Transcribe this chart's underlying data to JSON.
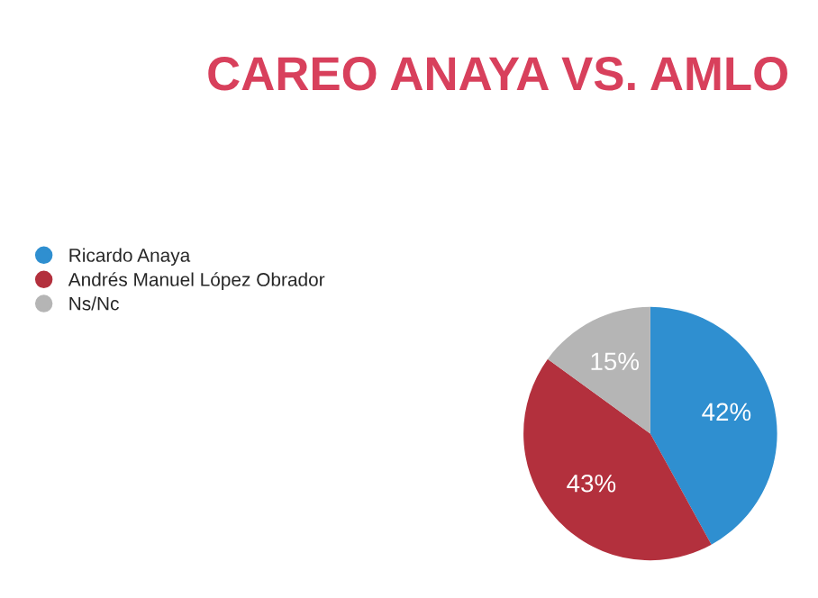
{
  "chart_data": {
    "type": "pie",
    "title": "CAREO ANAYA VS. AMLO",
    "categories": [
      "Ricardo Anaya",
      "Andrés Manuel López Obrador",
      "Ns/Nc"
    ],
    "values": [
      42,
      43,
      15
    ],
    "colors": [
      "#2f8fd0",
      "#b3303d",
      "#b5b5b5"
    ],
    "value_labels": [
      "42%",
      "43%",
      "15%"
    ],
    "legend": "left"
  }
}
